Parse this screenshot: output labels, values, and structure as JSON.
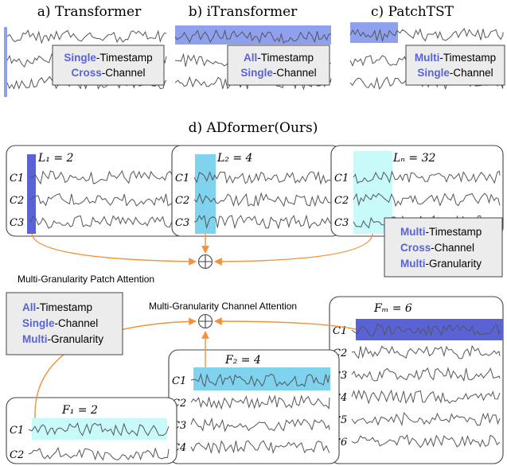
{
  "panel_a": {
    "title": "a) Transformer",
    "box": [
      {
        "strong": "Single",
        "rest": "-Timestamp"
      },
      {
        "strong": "Cross",
        "rest": "-Channel"
      }
    ]
  },
  "panel_b": {
    "title": "b) iTransformer",
    "box": [
      {
        "strong": "All",
        "rest": "-Timestamp"
      },
      {
        "strong": "Single",
        "rest": "-Channel"
      }
    ]
  },
  "panel_c": {
    "title": "c) PatchTST",
    "box": [
      {
        "strong": "Multi",
        "rest": "-Timestamp"
      },
      {
        "strong": "Single",
        "rest": "-Channel"
      }
    ]
  },
  "panel_d": {
    "title": "d) ADformer(Ours)",
    "patch_groups": [
      {
        "label": "L₁ = 2",
        "channels": [
          "C1",
          "C2",
          "C3"
        ]
      },
      {
        "label": "L₂ = 4",
        "channels": [
          "C1",
          "C2",
          "C3"
        ]
      },
      {
        "label": "Lₙ = 32",
        "channels": [
          "C1",
          "C2",
          "C3"
        ]
      }
    ],
    "patch_box": [
      {
        "strong": "Multi",
        "rest": "-Timestamp"
      },
      {
        "strong": "Cross",
        "rest": "-Channel"
      },
      {
        "strong": "Multi",
        "rest": "-Granularity"
      }
    ],
    "patch_attention_label": "Multi-Granularity Patch Attention",
    "channel_attention_label": "Multi-Granularity Channel Attention",
    "channel_box": [
      {
        "strong": "All",
        "rest": "-Timestamp"
      },
      {
        "strong": "Single",
        "rest": "-Channel"
      },
      {
        "strong": "Multi",
        "rest": "-Granularity"
      }
    ],
    "channel_groups": [
      {
        "label": "F₁ = 2",
        "channels": [
          "C1",
          "C2"
        ]
      },
      {
        "label": "F₂ = 4",
        "channels": [
          "C1",
          "C2",
          "C3",
          "C4"
        ]
      },
      {
        "label": "Fₘ = 6",
        "channels": [
          "C1",
          "C2",
          "C3",
          "C4",
          "C5",
          "C6"
        ]
      }
    ]
  },
  "colors": {
    "dark_blue": "#5a63d6",
    "light_blue": "#8fa0ee",
    "sky_blue": "#7fd3ef",
    "cyan": "#c8fafa",
    "arrow": "#f2923a",
    "wave": "#555555",
    "box_fill": "#ececec"
  }
}
